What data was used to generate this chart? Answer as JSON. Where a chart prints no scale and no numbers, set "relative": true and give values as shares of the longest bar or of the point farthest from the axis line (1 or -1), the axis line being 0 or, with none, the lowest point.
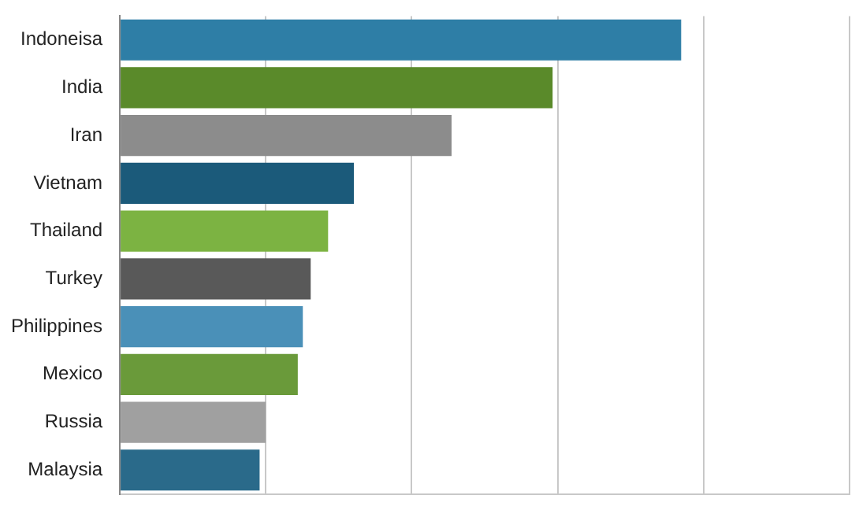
{
  "chart_data": {
    "type": "bar",
    "orientation": "horizontal",
    "relative": true,
    "grid": "x",
    "legend": false,
    "categories": [
      "Indoneisa",
      "India",
      "Iran",
      "Vietnam",
      "Thailand",
      "Turkey",
      "Philippines",
      "Mexico",
      "Russia",
      "Malaysia"
    ],
    "values": [
      1,
      0.771,
      0.591,
      0.417,
      0.371,
      0.34,
      0.326,
      0.317,
      0.26,
      0.249
    ],
    "colors": [
      "#2e7ea6",
      "#5a8a2a",
      "#8c8c8c",
      "#1b5a7a",
      "#7cb342",
      "#595959",
      "#4a90b8",
      "#6a9a3a",
      "#a0a0a0",
      "#2a6a8a"
    ]
  }
}
